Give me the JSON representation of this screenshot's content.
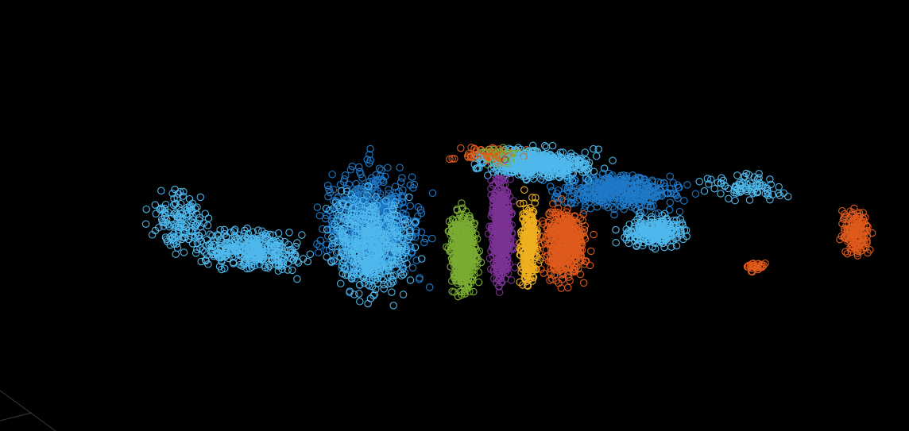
{
  "chart_data": {
    "type": "scatter",
    "projection": "3d",
    "marker": "open-circle",
    "background": "#000000",
    "grid": false,
    "legend": "none",
    "title": "",
    "xlabel": "",
    "ylabel": "",
    "zlabel": "",
    "colors": {
      "sky": "#4fb8ec",
      "blue": "#1f7ac9",
      "green": "#7aab32",
      "purple": "#7b3294",
      "yellow": "#eeb020",
      "orange": "#de5a1c"
    },
    "clusters": [
      {
        "color_key": "sky",
        "region": "left-tail",
        "center": [
          -0.78,
          -0.05,
          0.02
        ],
        "extent": [
          0.12,
          0.03,
          0.22
        ],
        "count": 140
      },
      {
        "color_key": "sky",
        "region": "left-tail-base",
        "center": [
          -0.55,
          -0.1,
          -0.1
        ],
        "extent": [
          0.22,
          0.1,
          0.14
        ],
        "count": 360
      },
      {
        "color_key": "blue",
        "region": "ribs",
        "center": [
          -0.3,
          0.1,
          0.0
        ],
        "extent": [
          0.18,
          0.08,
          0.42
        ],
        "count": 700
      },
      {
        "color_key": "sky",
        "region": "ribs-front",
        "center": [
          -0.22,
          -0.05,
          -0.05
        ],
        "extent": [
          0.16,
          0.05,
          0.36
        ],
        "count": 520
      },
      {
        "color_key": "green",
        "region": "green-fan",
        "center": [
          0.02,
          0.0,
          -0.08
        ],
        "extent": [
          0.05,
          0.02,
          0.3
        ],
        "count": 520
      },
      {
        "color_key": "purple",
        "region": "purple-band",
        "center": [
          0.12,
          0.02,
          0.05
        ],
        "extent": [
          0.04,
          0.02,
          0.42
        ],
        "count": 520
      },
      {
        "color_key": "yellow",
        "region": "yellow-band",
        "center": [
          0.2,
          0.02,
          -0.02
        ],
        "extent": [
          0.03,
          0.02,
          0.3
        ],
        "count": 300
      },
      {
        "color_key": "orange",
        "region": "orange-block",
        "center": [
          0.3,
          0.03,
          0.0
        ],
        "extent": [
          0.08,
          0.03,
          0.28
        ],
        "count": 500
      },
      {
        "color_key": "sky",
        "region": "top-ridge",
        "center": [
          0.1,
          0.25,
          0.35
        ],
        "extent": [
          0.2,
          0.12,
          0.1
        ],
        "count": 520
      },
      {
        "color_key": "blue",
        "region": "top-back",
        "center": [
          0.3,
          0.3,
          0.2
        ],
        "extent": [
          0.25,
          0.15,
          0.12
        ],
        "count": 420
      },
      {
        "color_key": "orange",
        "region": "top-mix",
        "center": [
          -0.05,
          0.25,
          0.38
        ],
        "extent": [
          0.12,
          0.08,
          0.05
        ],
        "count": 90
      },
      {
        "color_key": "green",
        "region": "top-mix",
        "center": [
          0.0,
          0.25,
          0.38
        ],
        "extent": [
          0.1,
          0.08,
          0.05
        ],
        "count": 70
      },
      {
        "color_key": "sky",
        "region": "right-shelf",
        "center": [
          0.5,
          0.15,
          0.05
        ],
        "extent": [
          0.12,
          0.08,
          0.12
        ],
        "count": 260
      },
      {
        "color_key": "sky",
        "region": "right-stream",
        "center": [
          0.65,
          0.35,
          0.25
        ],
        "extent": [
          0.18,
          0.05,
          0.1
        ],
        "count": 80
      },
      {
        "color_key": "orange",
        "region": "right-arc",
        "center": [
          1.0,
          0.3,
          0.05
        ],
        "extent": [
          0.05,
          0.04,
          0.18
        ],
        "count": 160
      },
      {
        "color_key": "orange",
        "region": "right-small",
        "center": [
          0.82,
          0.1,
          -0.1
        ],
        "extent": [
          0.04,
          0.04,
          0.05
        ],
        "count": 30
      }
    ]
  }
}
